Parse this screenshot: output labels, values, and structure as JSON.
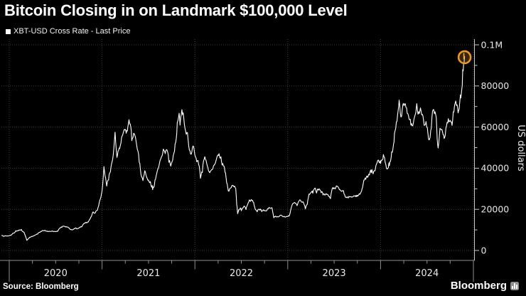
{
  "header": {
    "title": "Bitcoin Closing in on Landmark $100,000 Level",
    "legend_label": "XBT-USD Cross Rate - Last Price"
  },
  "footer": {
    "source": "Source: Bloomberg",
    "logo_text": "Bloomberg",
    "logo_icon": "bar-chart-icon"
  },
  "colors": {
    "background": "#000000",
    "line": "#ffffff",
    "grid": "#3f3f3f",
    "axis_line": "#8f8f8f",
    "right_axis_line": "#c8c8c8",
    "tick": "#cccccc",
    "label_text": "#e8e8e8",
    "highlight_ring": "#e8962e",
    "highlight_fill": "rgba(232,150,46,0.25)",
    "last_price_marker": "#f3a93c"
  },
  "chart_data": {
    "type": "line",
    "title": "XBT-USD Cross Rate - Last Price",
    "xlabel": "",
    "ylabel": "US dollars",
    "x_unit": "decimal_year",
    "y_unit": "USD",
    "xlim": [
      2019.92,
      2025.02
    ],
    "ylim": [
      0,
      100000
    ],
    "grid": "dotted horizontal every 20000 and dotted vertical at year boundaries",
    "legend_position": "top-left",
    "y_axis": {
      "ticks": [
        {
          "value": 100000,
          "label": "0.1M"
        },
        {
          "value": 80000,
          "label": "80000"
        },
        {
          "value": 60000,
          "label": "60000"
        },
        {
          "value": 40000,
          "label": "40000"
        },
        {
          "value": 20000,
          "label": "20000"
        },
        {
          "value": 0,
          "label": "0"
        }
      ],
      "minor_tick_values": [
        90000,
        70000,
        50000,
        30000,
        10000
      ]
    },
    "x_axis": {
      "year_boundaries": [
        2020,
        2021,
        2022,
        2023,
        2024,
        2025
      ],
      "labels": [
        "2020",
        "2021",
        "2022",
        "2023",
        "2024"
      ],
      "minor_ticks": "quarterly"
    },
    "annotation": {
      "type": "circle-highlight",
      "x": 2024.905,
      "value": 94300,
      "color": "#e8962e"
    },
    "series": [
      {
        "name": "XBT-USD Cross Rate - Last Price",
        "color": "#ffffff",
        "points": [
          [
            2019.92,
            7300
          ],
          [
            2019.96,
            7150
          ],
          [
            2020.0,
            7200
          ],
          [
            2020.04,
            8400
          ],
          [
            2020.07,
            9600
          ],
          [
            2020.1,
            9900
          ],
          [
            2020.13,
            10250
          ],
          [
            2020.16,
            8800
          ],
          [
            2020.19,
            4900
          ],
          [
            2020.22,
            6450
          ],
          [
            2020.25,
            6800
          ],
          [
            2020.29,
            7700
          ],
          [
            2020.33,
            8800
          ],
          [
            2020.36,
            9750
          ],
          [
            2020.4,
            9400
          ],
          [
            2020.44,
            9250
          ],
          [
            2020.48,
            9150
          ],
          [
            2020.52,
            9250
          ],
          [
            2020.55,
            11050
          ],
          [
            2020.59,
            11750
          ],
          [
            2020.62,
            11400
          ],
          [
            2020.66,
            10250
          ],
          [
            2020.7,
            10650
          ],
          [
            2020.74,
            10750
          ],
          [
            2020.78,
            11450
          ],
          [
            2020.81,
            13100
          ],
          [
            2020.85,
            13800
          ],
          [
            2020.88,
            16300
          ],
          [
            2020.9,
            18650
          ],
          [
            2020.92,
            18150
          ],
          [
            2020.95,
            19600
          ],
          [
            2020.97,
            23450
          ],
          [
            2021.0,
            29000
          ],
          [
            2021.02,
            40800
          ],
          [
            2021.05,
            31300
          ],
          [
            2021.07,
            34300
          ],
          [
            2021.09,
            38300
          ],
          [
            2021.12,
            46350
          ],
          [
            2021.14,
            57500
          ],
          [
            2021.16,
            45200
          ],
          [
            2021.19,
            49600
          ],
          [
            2021.21,
            54900
          ],
          [
            2021.24,
            58900
          ],
          [
            2021.26,
            57000
          ],
          [
            2021.29,
            63600
          ],
          [
            2021.31,
            59900
          ],
          [
            2021.32,
            53400
          ],
          [
            2021.34,
            57000
          ],
          [
            2021.36,
            55000
          ],
          [
            2021.38,
            49100
          ],
          [
            2021.4,
            43000
          ],
          [
            2021.42,
            36700
          ],
          [
            2021.44,
            34000
          ],
          [
            2021.46,
            38800
          ],
          [
            2021.48,
            35600
          ],
          [
            2021.5,
            34250
          ],
          [
            2021.52,
            33500
          ],
          [
            2021.54,
            31600
          ],
          [
            2021.55,
            30800
          ],
          [
            2021.57,
            34300
          ],
          [
            2021.6,
            39500
          ],
          [
            2021.62,
            42800
          ],
          [
            2021.64,
            45600
          ],
          [
            2021.66,
            49300
          ],
          [
            2021.68,
            47100
          ],
          [
            2021.7,
            48800
          ],
          [
            2021.72,
            42900
          ],
          [
            2021.74,
            41000
          ],
          [
            2021.76,
            43800
          ],
          [
            2021.78,
            48200
          ],
          [
            2021.8,
            54700
          ],
          [
            2021.81,
            62300
          ],
          [
            2021.83,
            66700
          ],
          [
            2021.84,
            60900
          ],
          [
            2021.86,
            68500
          ],
          [
            2021.88,
            64400
          ],
          [
            2021.9,
            58100
          ],
          [
            2021.92,
            57300
          ],
          [
            2021.94,
            48900
          ],
          [
            2021.96,
            46800
          ],
          [
            2021.98,
            50800
          ],
          [
            2022.0,
            46300
          ],
          [
            2022.02,
            43100
          ],
          [
            2022.04,
            41800
          ],
          [
            2022.06,
            35100
          ],
          [
            2022.08,
            37900
          ],
          [
            2022.1,
            44400
          ],
          [
            2022.12,
            43900
          ],
          [
            2022.14,
            40100
          ],
          [
            2022.16,
            37800
          ],
          [
            2022.18,
            39300
          ],
          [
            2022.2,
            41100
          ],
          [
            2022.22,
            42400
          ],
          [
            2022.24,
            45800
          ],
          [
            2022.26,
            47100
          ],
          [
            2022.28,
            45600
          ],
          [
            2022.3,
            42300
          ],
          [
            2022.32,
            39700
          ],
          [
            2022.33,
            37700
          ],
          [
            2022.36,
            28900
          ],
          [
            2022.38,
            30300
          ],
          [
            2022.41,
            31700
          ],
          [
            2022.44,
            30100
          ],
          [
            2022.45,
            22500
          ],
          [
            2022.46,
            17900
          ],
          [
            2022.49,
            20700
          ],
          [
            2022.5,
            19300
          ],
          [
            2022.53,
            21600
          ],
          [
            2022.55,
            19900
          ],
          [
            2022.58,
            23600
          ],
          [
            2022.6,
            23900
          ],
          [
            2022.62,
            24400
          ],
          [
            2022.65,
            20000
          ],
          [
            2022.67,
            18800
          ],
          [
            2022.7,
            19600
          ],
          [
            2022.72,
            18900
          ],
          [
            2022.75,
            19400
          ],
          [
            2022.77,
            19200
          ],
          [
            2022.79,
            20300
          ],
          [
            2022.81,
            20500
          ],
          [
            2022.83,
            20800
          ],
          [
            2022.85,
            15900
          ],
          [
            2022.87,
            16700
          ],
          [
            2022.89,
            16500
          ],
          [
            2022.92,
            17100
          ],
          [
            2022.94,
            16800
          ],
          [
            2022.96,
            16600
          ],
          [
            2023.0,
            16600
          ],
          [
            2023.02,
            17200
          ],
          [
            2023.04,
            21100
          ],
          [
            2023.06,
            23000
          ],
          [
            2023.08,
            23100
          ],
          [
            2023.1,
            21800
          ],
          [
            2023.13,
            24600
          ],
          [
            2023.15,
            23500
          ],
          [
            2023.17,
            23200
          ],
          [
            2023.19,
            20200
          ],
          [
            2023.21,
            22400
          ],
          [
            2023.23,
            27500
          ],
          [
            2023.25,
            28300
          ],
          [
            2023.27,
            27800
          ],
          [
            2023.29,
            30200
          ],
          [
            2023.31,
            27900
          ],
          [
            2023.33,
            29300
          ],
          [
            2023.36,
            28100
          ],
          [
            2023.38,
            27000
          ],
          [
            2023.4,
            26900
          ],
          [
            2023.42,
            27200
          ],
          [
            2023.44,
            26300
          ],
          [
            2023.46,
            25200
          ],
          [
            2023.48,
            30200
          ],
          [
            2023.5,
            30500
          ],
          [
            2023.53,
            31200
          ],
          [
            2023.55,
            30300
          ],
          [
            2023.57,
            29200
          ],
          [
            2023.6,
            29100
          ],
          [
            2023.62,
            26000
          ],
          [
            2023.64,
            26100
          ],
          [
            2023.67,
            26000
          ],
          [
            2023.69,
            25900
          ],
          [
            2023.71,
            26600
          ],
          [
            2023.73,
            26200
          ],
          [
            2023.75,
            26900
          ],
          [
            2023.77,
            27600
          ],
          [
            2023.79,
            28400
          ],
          [
            2023.8,
            29900
          ],
          [
            2023.82,
            34200
          ],
          [
            2023.84,
            34600
          ],
          [
            2023.86,
            35500
          ],
          [
            2023.88,
            36700
          ],
          [
            2023.9,
            37800
          ],
          [
            2023.92,
            37300
          ],
          [
            2023.94,
            38700
          ],
          [
            2023.95,
            41300
          ],
          [
            2023.97,
            43800
          ],
          [
            2023.99,
            42600
          ],
          [
            2024.0,
            42300
          ],
          [
            2024.02,
            44200
          ],
          [
            2024.03,
            46650
          ],
          [
            2024.05,
            42800
          ],
          [
            2024.07,
            39600
          ],
          [
            2024.09,
            42600
          ],
          [
            2024.1,
            43100
          ],
          [
            2024.12,
            48000
          ],
          [
            2024.14,
            51800
          ],
          [
            2024.15,
            57000
          ],
          [
            2024.17,
            62500
          ],
          [
            2024.19,
            68300
          ],
          [
            2024.2,
            73100
          ],
          [
            2024.22,
            64900
          ],
          [
            2024.24,
            70800
          ],
          [
            2024.26,
            71300
          ],
          [
            2024.28,
            69400
          ],
          [
            2024.3,
            65700
          ],
          [
            2024.32,
            63800
          ],
          [
            2024.34,
            60600
          ],
          [
            2024.36,
            63900
          ],
          [
            2024.38,
            67100
          ],
          [
            2024.39,
            71400
          ],
          [
            2024.41,
            67500
          ],
          [
            2024.43,
            69300
          ],
          [
            2024.45,
            66200
          ],
          [
            2024.47,
            60800
          ],
          [
            2024.49,
            62700
          ],
          [
            2024.51,
            57000
          ],
          [
            2024.52,
            53800
          ],
          [
            2024.54,
            58200
          ],
          [
            2024.56,
            67800
          ],
          [
            2024.58,
            66500
          ],
          [
            2024.6,
            64600
          ],
          [
            2024.61,
            54100
          ],
          [
            2024.62,
            49800
          ],
          [
            2024.64,
            59400
          ],
          [
            2024.66,
            58900
          ],
          [
            2024.68,
            56200
          ],
          [
            2024.69,
            54900
          ],
          [
            2024.71,
            60500
          ],
          [
            2024.73,
            64100
          ],
          [
            2024.75,
            63300
          ],
          [
            2024.77,
            60800
          ],
          [
            2024.79,
            67400
          ],
          [
            2024.81,
            72700
          ],
          [
            2024.83,
            69400
          ],
          [
            2024.84,
            67900
          ],
          [
            2024.86,
            75600
          ],
          [
            2024.87,
            76300
          ],
          [
            2024.88,
            80400
          ],
          [
            2024.885,
            88000
          ],
          [
            2024.89,
            87300
          ],
          [
            2024.895,
            91000
          ],
          [
            2024.9,
            91500
          ],
          [
            2024.905,
            94300
          ]
        ]
      }
    ]
  }
}
